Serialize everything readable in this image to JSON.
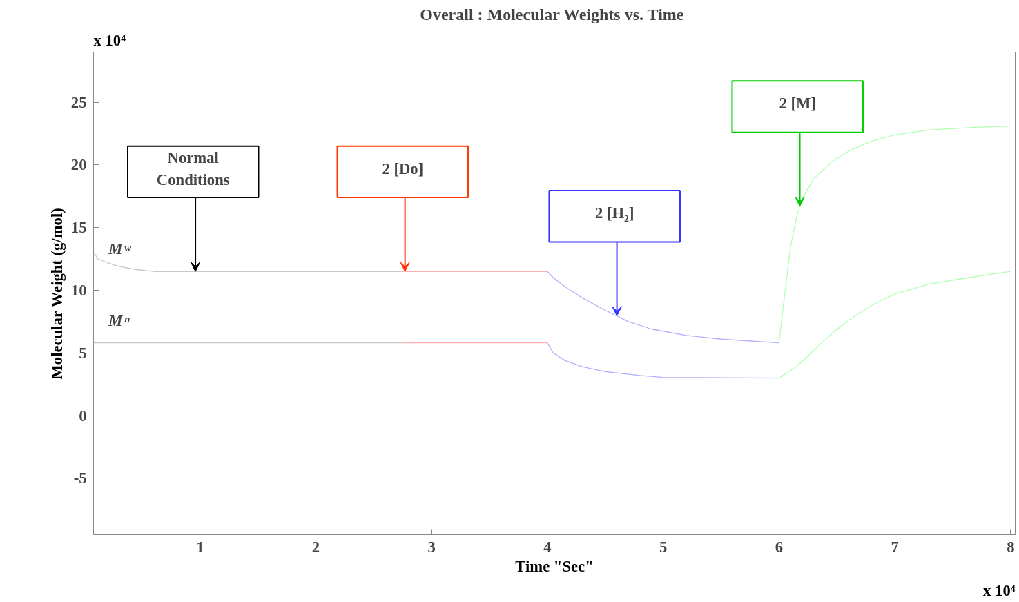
{
  "chart_data": {
    "type": "line",
    "title": "Overall : Molecular Weights  vs. Time",
    "xlabel": "Time \"Sec\"",
    "ylabel": "Molecular Weight (g/mol)",
    "xlim": [
      0.08,
      8.04
    ],
    "ylim": [
      -9.5,
      29
    ],
    "xticks": [
      1,
      2,
      3,
      4,
      5,
      6,
      7,
      8
    ],
    "yticks": [
      -5,
      0,
      5,
      10,
      15,
      20,
      25
    ],
    "grid": false,
    "marker": "none",
    "line_style": "solid",
    "series": [
      {
        "name": "M$_{w}$",
        "color": "#c8c8c8",
        "x": [
          0.08,
          0.12,
          0.2,
          0.3,
          0.45,
          0.6,
          2.75
        ],
        "values": [
          13.0,
          12.5,
          12.2,
          11.9,
          11.65,
          11.5,
          11.5
        ]
      },
      {
        "color": "#ffb0b0",
        "x": [
          2.75,
          4.0
        ],
        "values": [
          11.5,
          11.5
        ]
      },
      {
        "color": "#b0b0ff",
        "x": [
          4.0,
          4.05,
          4.15,
          4.3,
          4.5,
          4.7,
          4.9,
          5.2,
          5.5,
          6.0
        ],
        "values": [
          11.5,
          11.0,
          10.3,
          9.4,
          8.4,
          7.5,
          6.9,
          6.4,
          6.1,
          5.8
        ]
      },
      {
        "color": "#b0ffb0",
        "x": [
          6.0,
          6.02,
          6.06,
          6.1,
          6.15,
          6.2,
          6.3,
          6.45,
          6.6,
          6.8,
          7.0,
          7.3,
          7.7,
          8.0
        ],
        "values": [
          5.8,
          7.4,
          10.5,
          13.5,
          15.8,
          17.3,
          18.9,
          20.2,
          21.1,
          21.9,
          22.4,
          22.8,
          23.0,
          23.1
        ]
      },
      {
        "name": "M$_{n}$",
        "color": "#c8c8c8",
        "x": [
          0.08,
          2.75
        ],
        "values": [
          5.8,
          5.8
        ]
      },
      {
        "color": "#ffb0b0",
        "x": [
          2.75,
          4.0
        ],
        "values": [
          5.8,
          5.8
        ]
      },
      {
        "color": "#b0b0ff",
        "x": [
          4.0,
          4.05,
          4.15,
          4.3,
          4.5,
          4.8,
          5.0,
          6.0
        ],
        "values": [
          5.8,
          5.0,
          4.4,
          3.9,
          3.5,
          3.2,
          3.05,
          3.0
        ]
      },
      {
        "color": "#b0ffb0",
        "x": [
          6.0,
          6.15,
          6.3,
          6.45,
          6.6,
          6.8,
          7.0,
          7.3,
          7.7,
          8.0
        ],
        "values": [
          3.0,
          3.9,
          5.2,
          6.5,
          7.6,
          8.8,
          9.7,
          10.5,
          11.1,
          11.5
        ]
      }
    ],
    "annotations": [
      "x 10⁴",
      "x 10⁴",
      {
        "text": "Normal\nConditions",
        "x": 0.96,
        "y": 11.5
      },
      {
        "text": "2 [Do]",
        "x": 2.77,
        "y": 11.5
      },
      {
        "text": "2 [H₂]",
        "x": 4.6,
        "y": 7.95
      },
      {
        "text": "2 [M]",
        "x": 6.18,
        "y": 16.7
      }
    ]
  }
}
